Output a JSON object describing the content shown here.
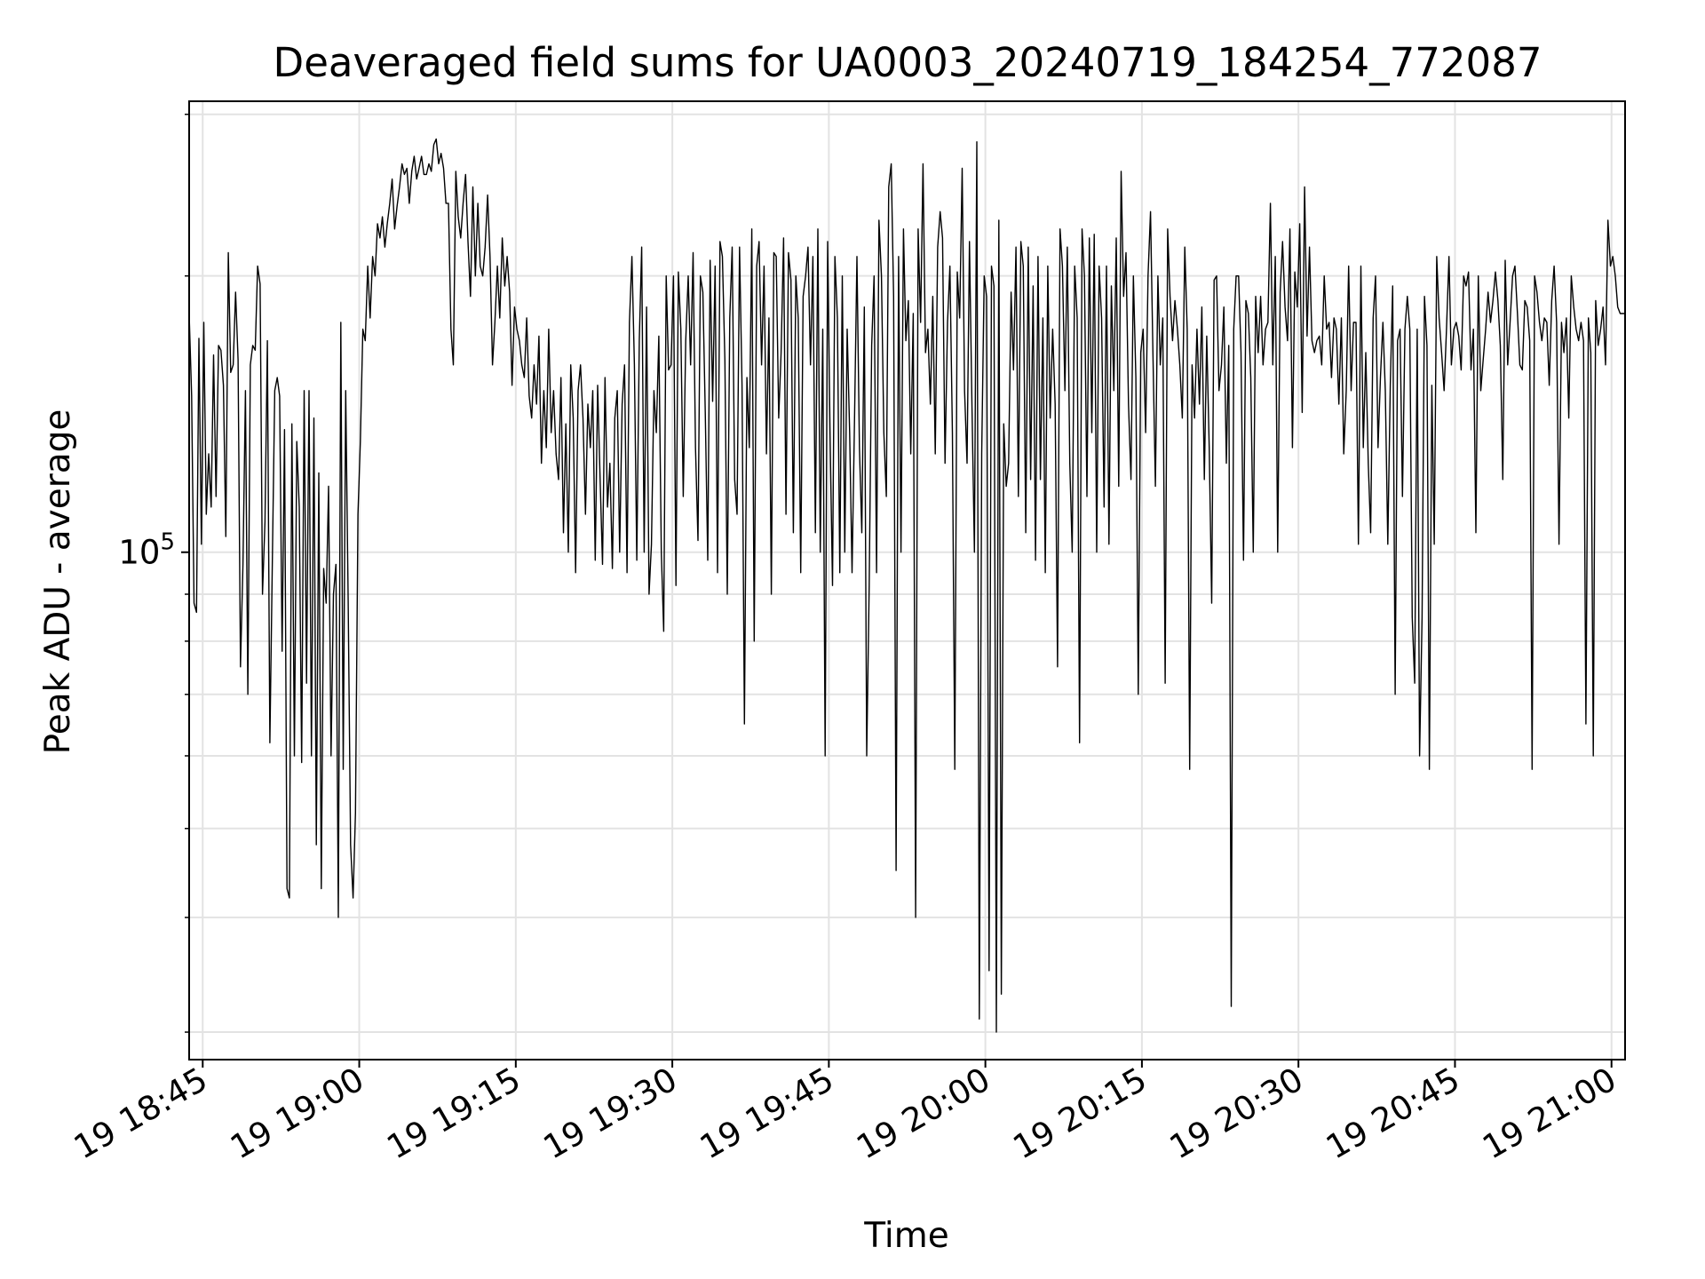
{
  "chart_data": {
    "type": "line",
    "title": "Deaveraged field sums for UA0003_20240719_184254_772087",
    "xlabel": "Time",
    "ylabel": "Peak ADU - average",
    "y_scale": "log",
    "ylim": [
      28000,
      310000
    ],
    "xlim": [
      "19 18:43:42",
      "19 21:01:18"
    ],
    "grid": true,
    "line_color": "#000000",
    "x_ticks": [
      "19 18:45",
      "19 19:00",
      "19 19:15",
      "19 19:30",
      "19 19:45",
      "19 20:00",
      "19 20:15",
      "19 20:30",
      "19 20:45",
      "19 21:00"
    ],
    "y_ticks": [
      {
        "base": "10",
        "exp": "5",
        "value": 100000
      }
    ],
    "y_minor_ticks": [
      30000,
      40000,
      50000,
      60000,
      70000,
      80000,
      90000,
      200000,
      300000
    ],
    "x_start": "19 18:43:42",
    "x_end": "19 21:01:18",
    "series": [
      {
        "values": [
          182000,
          148000,
          88000,
          86000,
          171000,
          102000,
          178000,
          110000,
          128000,
          112000,
          164000,
          115000,
          168000,
          166000,
          152000,
          104000,
          212000,
          157000,
          160000,
          192000,
          162000,
          75000,
          97000,
          150000,
          70000,
          160000,
          168000,
          166000,
          205000,
          196000,
          90000,
          108000,
          170000,
          62000,
          98000,
          150000,
          155000,
          148000,
          78000,
          136000,
          43000,
          42000,
          138000,
          60000,
          132000,
          112000,
          59000,
          150000,
          72000,
          150000,
          60000,
          140000,
          48000,
          122000,
          43000,
          96000,
          88000,
          118000,
          60000,
          90000,
          97000,
          40000,
          178000,
          58000,
          150000,
          88000,
          48000,
          42000,
          52000,
          110000,
          132000,
          175000,
          170000,
          205000,
          180000,
          210000,
          200000,
          228000,
          220000,
          232000,
          215000,
          228000,
          240000,
          255000,
          225000,
          238000,
          250000,
          265000,
          258000,
          262000,
          240000,
          260000,
          270000,
          255000,
          262000,
          270000,
          258000,
          258000,
          265000,
          260000,
          278000,
          282000,
          265000,
          272000,
          262000,
          240000,
          240000,
          175000,
          160000,
          260000,
          232000,
          220000,
          240000,
          258000,
          218000,
          190000,
          250000,
          200000,
          240000,
          205000,
          200000,
          215000,
          245000,
          210000,
          160000,
          178000,
          205000,
          180000,
          220000,
          195000,
          210000,
          192000,
          152000,
          185000,
          175000,
          170000,
          160000,
          155000,
          180000,
          148000,
          140000,
          160000,
          145000,
          172000,
          125000,
          150000,
          130000,
          175000,
          135000,
          150000,
          128000,
          120000,
          155000,
          105000,
          138000,
          100000,
          160000,
          140000,
          95000,
          150000,
          160000,
          140000,
          110000,
          145000,
          130000,
          150000,
          98000,
          152000,
          120000,
          97000,
          155000,
          112000,
          125000,
          96000,
          140000,
          150000,
          100000,
          145000,
          160000,
          95000,
          178000,
          210000,
          160000,
          98000,
          170000,
          215000,
          100000,
          185000,
          90000,
          102000,
          150000,
          135000,
          172000,
          100000,
          82000,
          200000,
          158000,
          160000,
          200000,
          92000,
          202000,
          175000,
          115000,
          170000,
          200000,
          160000,
          212000,
          130000,
          103000,
          200000,
          192000,
          142000,
          98000,
          208000,
          146000,
          205000,
          95000,
          218000,
          210000,
          162000,
          90000,
          180000,
          215000,
          120000,
          110000,
          215000,
          152000,
          65000,
          155000,
          130000,
          225000,
          80000,
          205000,
          218000,
          160000,
          205000,
          128000,
          180000,
          90000,
          212000,
          210000,
          140000,
          165000,
          220000,
          110000,
          212000,
          198000,
          105000,
          200000,
          180000,
          95000,
          190000,
          200000,
          215000,
          160000,
          210000,
          105000,
          225000,
          100000,
          175000,
          60000,
          218000,
          135000,
          92000,
          210000,
          180000,
          95000,
          200000,
          100000,
          175000,
          135000,
          95000,
          140000,
          210000,
          130000,
          105000,
          185000,
          60000,
          92000,
          168000,
          200000,
          95000,
          230000,
          200000,
          135000,
          115000,
          250000,
          265000,
          190000,
          45000,
          210000,
          100000,
          225000,
          170000,
          188000,
          128000,
          182000,
          40000,
          225000,
          178000,
          265000,
          165000,
          175000,
          145000,
          190000,
          128000,
          215000,
          235000,
          220000,
          125000,
          178000,
          205000,
          135000,
          58000,
          202000,
          180000,
          262000,
          150000,
          125000,
          218000,
          145000,
          100000,
          280000,
          31000,
          128000,
          200000,
          190000,
          35000,
          205000,
          195000,
          30000,
          230000,
          33000,
          138000,
          118000,
          125000,
          192000,
          158000,
          215000,
          115000,
          218000,
          205000,
          105000,
          215000,
          120000,
          195000,
          98000,
          210000,
          120000,
          180000,
          95000,
          205000,
          140000,
          175000,
          145000,
          75000,
          225000,
          205000,
          150000,
          215000,
          125000,
          100000,
          205000,
          180000,
          62000,
          225000,
          200000,
          115000,
          220000,
          135000,
          222000,
          100000,
          205000,
          180000,
          112000,
          205000,
          102000,
          195000,
          150000,
          220000,
          118000,
          260000,
          190000,
          212000,
          145000,
          120000,
          200000,
          155000,
          70000,
          165000,
          175000,
          135000,
          200000,
          235000,
          165000,
          118000,
          200000,
          160000,
          180000,
          72000,
          225000,
          190000,
          170000,
          188000,
          175000,
          160000,
          140000,
          215000,
          175000,
          58000,
          160000,
          140000,
          175000,
          145000,
          185000,
          120000,
          172000,
          130000,
          88000,
          198000,
          200000,
          150000,
          160000,
          185000,
          125000,
          168000,
          32000,
          175000,
          200000,
          200000,
          165000,
          98000,
          188000,
          182000,
          155000,
          100000,
          190000,
          165000,
          190000,
          160000,
          175000,
          178000,
          240000,
          160000,
          210000,
          100000,
          192000,
          218000,
          185000,
          170000,
          225000,
          130000,
          202000,
          185000,
          228000,
          142000,
          250000,
          172000,
          215000,
          170000,
          165000,
          170000,
          172000,
          160000,
          200000,
          175000,
          178000,
          155000,
          180000,
          175000,
          145000,
          180000,
          128000,
          150000,
          205000,
          150000,
          178000,
          178000,
          102000,
          205000,
          130000,
          165000,
          125000,
          105000,
          180000,
          200000,
          130000,
          155000,
          178000,
          150000,
          102000,
          152000,
          195000,
          70000,
          170000,
          175000,
          115000,
          175000,
          190000,
          175000,
          85000,
          72000,
          175000,
          60000,
          85000,
          190000,
          168000,
          58000,
          152000,
          102000,
          210000,
          180000,
          165000,
          150000,
          175000,
          210000,
          160000,
          175000,
          178000,
          172000,
          158000,
          200000,
          195000,
          202000,
          158000,
          175000,
          105000,
          200000,
          150000,
          162000,
          175000,
          192000,
          178000,
          188000,
          202000,
          188000,
          168000,
          120000,
          208000,
          160000,
          178000,
          200000,
          205000,
          182000,
          160000,
          158000,
          188000,
          185000,
          170000,
          58000,
          200000,
          192000,
          178000,
          170000,
          180000,
          178000,
          152000,
          188000,
          205000,
          178000,
          102000,
          178000,
          165000,
          180000,
          140000,
          200000,
          185000,
          175000,
          170000,
          178000,
          170000,
          65000,
          180000,
          165000,
          60000,
          188000,
          168000,
          175000,
          185000,
          160000,
          230000,
          205000,
          210000,
          200000,
          185000,
          182000,
          182000,
          182000
        ]
      }
    ]
  }
}
